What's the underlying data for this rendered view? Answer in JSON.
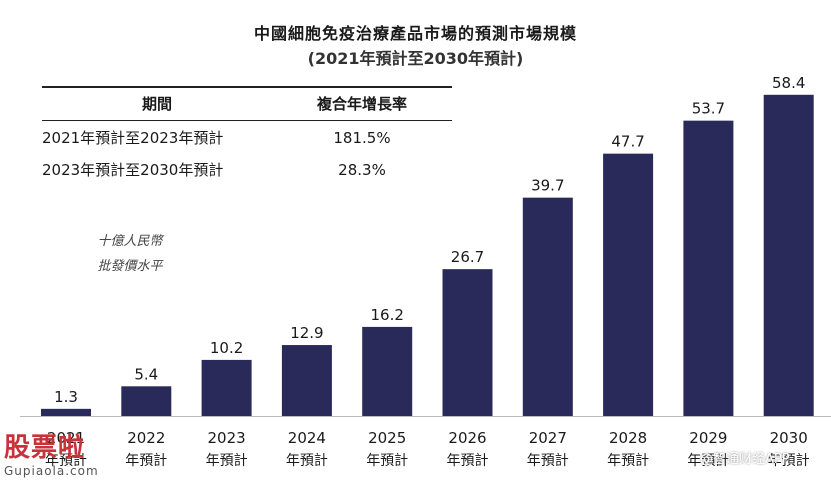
{
  "chart_data": {
    "type": "bar",
    "title": "中國細胞免疫治療產品市場的預測市場規模",
    "subtitle": "(2021年預計至2030年預計)",
    "unit_label": "十億人民幣",
    "unit_note": "批發價水平",
    "categories": [
      {
        "year": "2021",
        "suffix": "年預計"
      },
      {
        "year": "2022",
        "suffix": "年預計"
      },
      {
        "year": "2023",
        "suffix": "年預計"
      },
      {
        "year": "2024",
        "suffix": "年預計"
      },
      {
        "year": "2025",
        "suffix": "年預計"
      },
      {
        "year": "2026",
        "suffix": "年預計"
      },
      {
        "year": "2027",
        "suffix": "年預計"
      },
      {
        "year": "2028",
        "suffix": "年預計"
      },
      {
        "year": "2029",
        "suffix": "年預計"
      },
      {
        "year": "2030",
        "suffix": "年預計"
      }
    ],
    "values": [
      1.3,
      5.4,
      10.2,
      12.9,
      16.2,
      26.7,
      39.7,
      47.7,
      53.7,
      58.4
    ],
    "bar_color": "#2a2a5a",
    "ylim": [
      0,
      60
    ],
    "grid": false,
    "legend": "none"
  },
  "cagr_table": {
    "headers": [
      "期間",
      "複合年增長率"
    ],
    "rows": [
      [
        "2021年預計至2023年預計",
        "181.5%"
      ],
      [
        "2023年預計至2030年預計",
        "28.3%"
      ]
    ]
  },
  "watermarks": {
    "logo_line1": "股票啦",
    "logo_line2": "Gupiaola.com",
    "corner_text": "@智通财经APP"
  },
  "colors": {
    "bar": "#2a2a5a",
    "logo": "#c8323a",
    "axis": "#bbbbbb"
  }
}
